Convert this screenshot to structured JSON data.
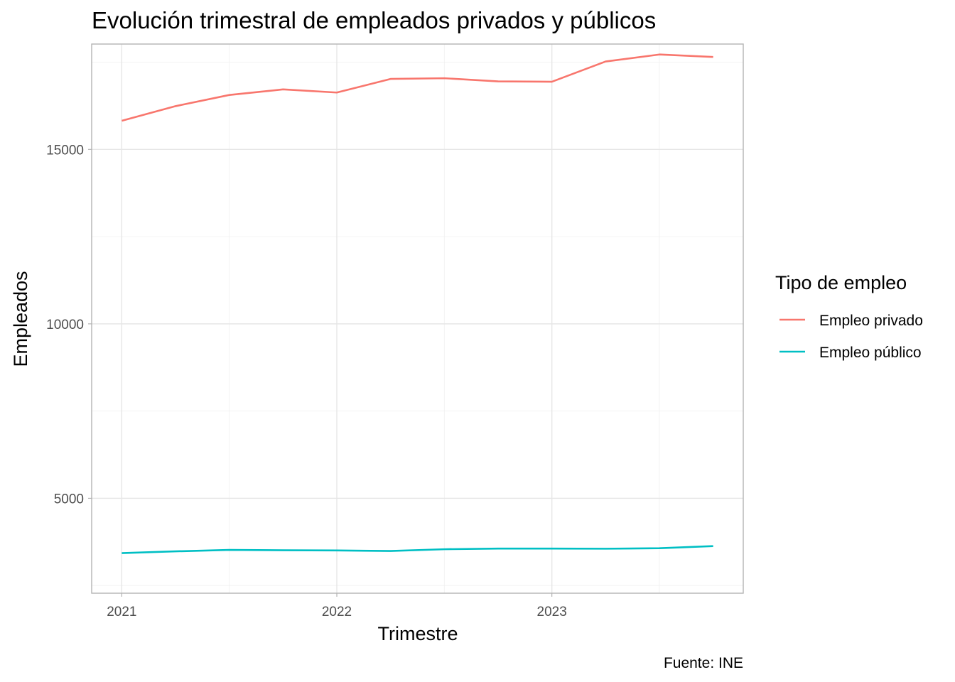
{
  "chart_data": {
    "type": "line",
    "title": "Evolución trimestral de empleados privados y públicos",
    "xlabel": "Trimestre",
    "ylabel": "Empleados",
    "caption": "Fuente: INE",
    "x": [
      2021.0,
      2021.25,
      2021.5,
      2021.75,
      2022.0,
      2022.25,
      2022.5,
      2022.75,
      2023.0,
      2023.25,
      2023.5,
      2023.75
    ],
    "xlim": [
      2020.86,
      2023.89
    ],
    "ylim": [
      2280,
      18020
    ],
    "x_ticks": [
      {
        "value": 2021,
        "label": "2021"
      },
      {
        "value": 2022,
        "label": "2022"
      },
      {
        "value": 2023,
        "label": "2023"
      }
    ],
    "y_ticks": [
      {
        "value": 5000,
        "label": "5000"
      },
      {
        "value": 10000,
        "label": "10000"
      },
      {
        "value": 15000,
        "label": "15000"
      }
    ],
    "grid": true,
    "legend": {
      "title": "Tipo de empleo",
      "position": "right"
    },
    "series": [
      {
        "name": "Empleo privado",
        "color": "#F8766D",
        "values": [
          15820,
          16240,
          16560,
          16720,
          16630,
          17020,
          17040,
          16950,
          16940,
          17520,
          17720,
          17650
        ]
      },
      {
        "name": "Empleo público",
        "color": "#00BFC4",
        "values": [
          3430,
          3480,
          3520,
          3510,
          3505,
          3490,
          3540,
          3560,
          3560,
          3555,
          3570,
          3630
        ]
      }
    ]
  }
}
